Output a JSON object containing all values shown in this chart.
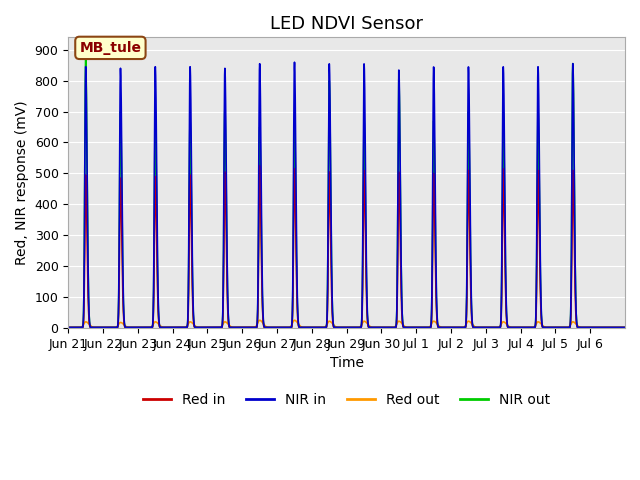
{
  "title": "LED NDVI Sensor",
  "xlabel": "Time",
  "ylabel": "Red, NIR response (mV)",
  "ylim": [
    0,
    940
  ],
  "yticks": [
    0,
    100,
    200,
    300,
    400,
    500,
    600,
    700,
    800,
    900
  ],
  "annotation": "MB_tule",
  "colors": {
    "red_in": "#cc0000",
    "nir_in": "#0000cc",
    "red_out": "#ff9900",
    "nir_out": "#00cc00"
  },
  "legend_labels": [
    "Red in",
    "NIR in",
    "Red out",
    "NIR out"
  ],
  "background_color": "#ffffff",
  "plot_bg_color": "#e8e8e8",
  "grid_color": "#ffffff",
  "x_tick_labels": [
    "Jun 21",
    "Jun 22",
    "Jun 23",
    "Jun 24",
    "Jun 25",
    "Jun 26",
    "Jun 27",
    "Jun 28",
    "Jun 29",
    "Jun 30",
    "Jul 1",
    "Jul 2",
    "Jul 3",
    "Jul 4",
    "Jul 5",
    "Jul 6"
  ],
  "x_tick_positions": [
    0,
    1,
    2,
    3,
    4,
    5,
    6,
    7,
    8,
    9,
    10,
    11,
    12,
    13,
    14,
    15
  ],
  "total_days": 16,
  "title_fontsize": 13,
  "label_fontsize": 10,
  "tick_fontsize": 9,
  "spike_days": [
    0.5,
    1.5,
    2.5,
    3.5,
    4.5,
    5.5,
    6.5,
    7.5,
    8.5,
    9.5,
    10.5,
    11.5,
    12.5,
    13.5,
    14.5
  ],
  "nir_in_heights": [
    845,
    840,
    845,
    845,
    840,
    855,
    860,
    855,
    855,
    835,
    845,
    845,
    845,
    845,
    855
  ],
  "red_in_heights": [
    495,
    485,
    490,
    495,
    505,
    525,
    515,
    505,
    510,
    505,
    500,
    510,
    515,
    510,
    510
  ],
  "nir_out_heights": [
    870,
    700,
    665,
    670,
    710,
    650,
    660,
    800,
    675,
    805,
    670,
    700,
    700,
    705,
    855
  ],
  "red_out_heights": [
    20,
    18,
    20,
    20,
    20,
    25,
    25,
    22,
    22,
    22,
    22,
    22,
    20,
    20,
    20
  ]
}
